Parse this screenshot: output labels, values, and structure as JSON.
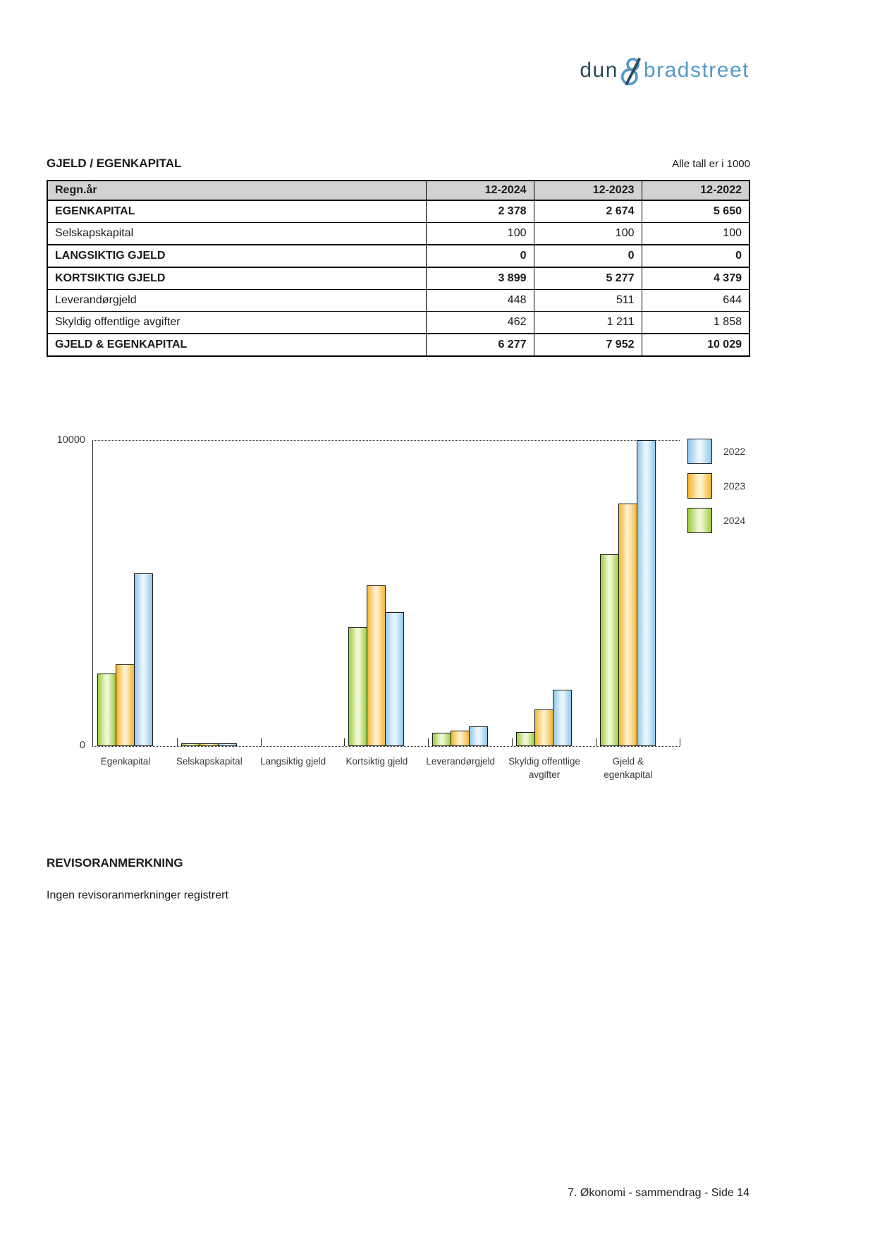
{
  "logo": {
    "word1": "dun",
    "ampersand": "&",
    "word2": "bradstreet",
    "color_dark": "#2d4a5e",
    "color_light": "#5499c7"
  },
  "table": {
    "title": "GJELD / EGENKAPITAL",
    "unit_note": "Alle tall er i 1000",
    "header_bg": "#d2d2d2",
    "columns": [
      "Regn.år",
      "12-2024",
      "12-2023",
      "12-2022"
    ],
    "rows": [
      {
        "label": "EGENKAPITAL",
        "values": [
          "2 378",
          "2 674",
          "5 650"
        ],
        "bold": true,
        "section": true
      },
      {
        "label": "Selskapskapital",
        "values": [
          "100",
          "100",
          "100"
        ],
        "bold": false,
        "section": false
      },
      {
        "label": "LANGSIKTIG GJELD",
        "values": [
          "0",
          "0",
          "0"
        ],
        "bold": true,
        "section": true
      },
      {
        "label": "KORTSIKTIG GJELD",
        "values": [
          "3 899",
          "5 277",
          "4 379"
        ],
        "bold": true,
        "section": true
      },
      {
        "label": "Leverandørgjeld",
        "values": [
          "448",
          "511",
          "644"
        ],
        "bold": false,
        "section": false
      },
      {
        "label": "Skyldig offentlige avgifter",
        "values": [
          "462",
          "1 211",
          "1 858"
        ],
        "bold": false,
        "section": false
      },
      {
        "label": "GJELD & EGENKAPITAL",
        "values": [
          "6 277",
          "7 952",
          "10 029"
        ],
        "bold": true,
        "section": true
      }
    ]
  },
  "chart_data": {
    "type": "bar",
    "title": "",
    "xlabel": "",
    "ylabel": "",
    "ylim": [
      0,
      10000
    ],
    "ytick_labels": [
      "0",
      "10000"
    ],
    "grid": "single dotted gridline at 10000 (top) and dotted baseline at 0",
    "legend_position": "top-right",
    "categories": [
      "Egenkapital",
      "Selskapskapital",
      "Langsiktig gjeld",
      "Kortsiktig gjeld",
      "Leverandørgjeld",
      "Skyldig offentlige\navgifter",
      "Gjeld &\negenkapital"
    ],
    "series": [
      {
        "name": "2024",
        "values": [
          2378,
          100,
          0,
          3899,
          448,
          462,
          6277
        ],
        "color_edge": "#9ccd3f",
        "color_light": "#eff7d5"
      },
      {
        "name": "2023",
        "values": [
          2674,
          100,
          0,
          5277,
          511,
          1211,
          7952
        ],
        "color_edge": "#f6b42c",
        "color_light": "#fdf0cb"
      },
      {
        "name": "2022",
        "values": [
          5650,
          100,
          0,
          4379,
          644,
          1858,
          10029
        ],
        "color_edge": "#8ec7ec",
        "color_light": "#eaf5fc"
      }
    ],
    "legend": [
      "2022",
      "2023",
      "2024"
    ]
  },
  "revisor": {
    "heading": "REVISORANMERKNING",
    "text": "Ingen revisoranmerkninger registrert"
  },
  "footer": {
    "text": "7. Økonomi - sammendrag - Side 14"
  }
}
